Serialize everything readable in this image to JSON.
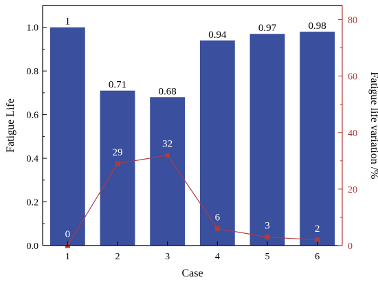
{
  "chart_data": {
    "type": "bar",
    "categories": [
      "1",
      "2",
      "3",
      "4",
      "5",
      "6"
    ],
    "series": [
      {
        "type": "bar",
        "axis": "left",
        "values": [
          1,
          0.71,
          0.68,
          0.94,
          0.97,
          0.98
        ],
        "labels": [
          "1",
          "0.71",
          "0.68",
          "0.94",
          "0.97",
          "0.98"
        ],
        "color": "#3a4f9e"
      },
      {
        "type": "line",
        "axis": "right",
        "values": [
          0,
          29,
          32,
          6,
          3,
          2
        ],
        "labels": [
          "0",
          "29",
          "32",
          "6",
          "3",
          "2"
        ],
        "color": "#b33a3a"
      }
    ],
    "xlabel": "Case",
    "ylabel": "Fatigue Life",
    "y2label": "Fatigue life variation /%",
    "ylim": [
      0,
      1.1
    ],
    "y2lim": [
      0,
      85
    ],
    "yticks": [
      "0.0",
      "0.2",
      "0.4",
      "0.6",
      "0.8",
      "1.0"
    ],
    "y2ticks": [
      "0",
      "20",
      "40",
      "60",
      "80"
    ],
    "grid": false,
    "legend": "none",
    "colors": {
      "axis": "#000000",
      "right_axis": "#b33a3a"
    }
  }
}
